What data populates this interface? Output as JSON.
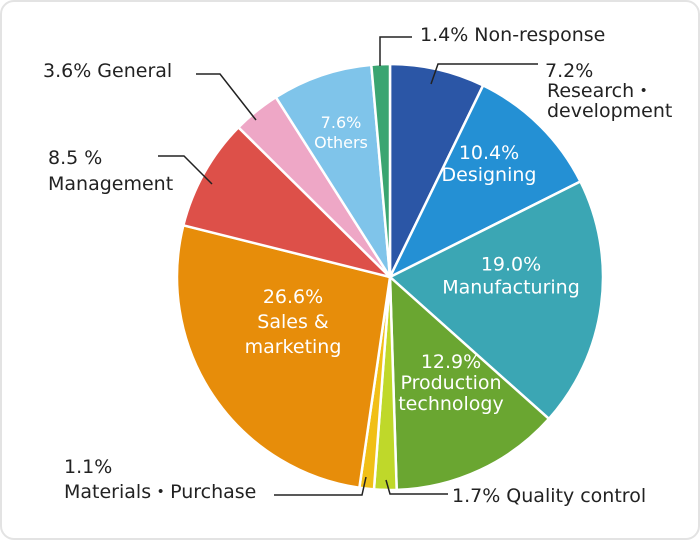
{
  "chart_data": {
    "type": "pie",
    "start": "12 o'clock",
    "direction": "clockwise",
    "slices": [
      {
        "name": "Research・development",
        "value": 7.2,
        "color": "#2b56a6",
        "label_lines": [
          "7.2%",
          "Research・",
          "development"
        ],
        "label_placement": "outside"
      },
      {
        "name": "Designing",
        "value": 10.4,
        "color": "#2490d4",
        "label_lines": [
          "10.4%",
          "Designing"
        ],
        "label_placement": "inside"
      },
      {
        "name": "Manufacturing",
        "value": 19.0,
        "color": "#3ba6b4",
        "label_lines": [
          "19.0%",
          "Manufacturing"
        ],
        "label_placement": "inside"
      },
      {
        "name": "Production technology",
        "value": 12.9,
        "color": "#6aa631",
        "label_lines": [
          "12.9%",
          "Production",
          "technology"
        ],
        "label_placement": "inside"
      },
      {
        "name": "Quality control",
        "value": 1.7,
        "color": "#bfd82a",
        "label_lines": [
          "1.7% Quality control"
        ],
        "label_placement": "outside"
      },
      {
        "name": "Materials・Purchase",
        "value": 1.1,
        "color": "#f1bf16",
        "label_lines": [
          "1.1%",
          "Materials・Purchase"
        ],
        "label_placement": "outside"
      },
      {
        "name": "Sales & marketing",
        "value": 26.6,
        "color": "#e78d0a",
        "label_lines": [
          "26.6%",
          "Sales &",
          "marketing"
        ],
        "label_placement": "inside"
      },
      {
        "name": "Management",
        "value": 8.5,
        "color": "#dd5049",
        "label_lines": [
          "8.5 %",
          "Management"
        ],
        "label_placement": "outside"
      },
      {
        "name": "General",
        "value": 3.6,
        "color": "#eea7c6",
        "label_lines": [
          "3.6% General"
        ],
        "label_placement": "outside"
      },
      {
        "name": "Others",
        "value": 7.6,
        "color": "#7fc4ea",
        "label_lines": [
          "7.6%",
          "Others"
        ],
        "label_placement": "inside"
      },
      {
        "name": "Non-response",
        "value": 1.4,
        "color": "#3aa571",
        "label_lines": [
          "1.4% Non-response"
        ],
        "label_placement": "outside"
      }
    ]
  }
}
